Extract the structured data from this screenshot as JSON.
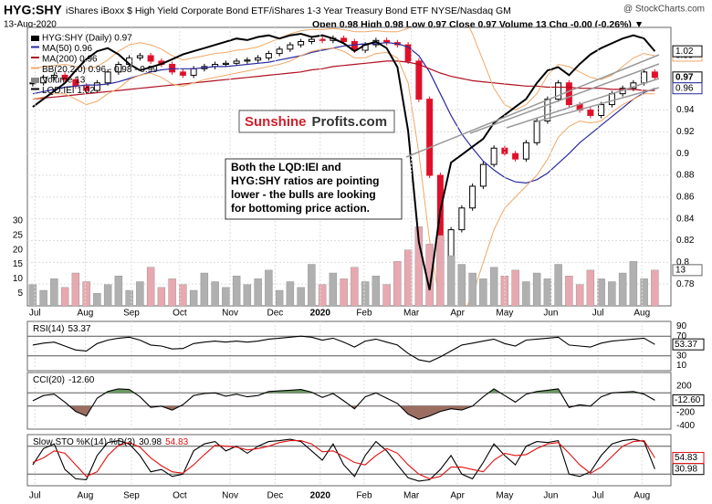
{
  "chart_data": [
    {
      "type": "stock",
      "title": "HYG:SHY",
      "subtitle": "iShares iBoxx $ High Yield Corporate Bond ETF/iShares 1-3 Year Treasury Bond ETF NYSE/Nasdaq GM",
      "source": "@ StockCharts.com",
      "date": "13-Aug-2020",
      "quote": "Open 0.98 High 0.98 Low 0.97 Close 0.97 Volume 13 Chg -0.00 (-0.26%) ▼",
      "brand": [
        "Sunshine",
        "Profits.com"
      ],
      "annotation": [
        "Both the LQD:IEI and",
        "HYG:SHY ratios are pointing",
        "lower - the bulls are looking",
        "for bottoming price action."
      ],
      "xlim": [
        -0.5,
        59.5
      ],
      "xticks": [
        {
          "value": 0.2,
          "label": "Jul"
        },
        {
          "value": 4.9,
          "label": "Aug"
        },
        {
          "value": 9.2,
          "label": "Sep"
        },
        {
          "value": 13.7,
          "label": "Oct"
        },
        {
          "value": 18.4,
          "label": "Nov"
        },
        {
          "value": 22.6,
          "label": "Dec"
        },
        {
          "value": 26.8,
          "label": "2020"
        },
        {
          "value": 30.9,
          "label": "Feb"
        },
        {
          "value": 35.3,
          "label": "Mar"
        },
        {
          "value": 39.6,
          "label": "Apr"
        },
        {
          "value": 44,
          "label": "May"
        },
        {
          "value": 48.3,
          "label": "Jun"
        },
        {
          "value": 52.7,
          "label": "Jul"
        },
        {
          "value": 56.8,
          "label": "Aug"
        }
      ],
      "ylim": [
        0.76,
        1.016
      ],
      "yticks": [
        0.78,
        0.8,
        0.82,
        0.84,
        0.86,
        0.88,
        0.9,
        0.92,
        0.94
      ],
      "y2lim": [
        0.86,
        1.035
      ],
      "series": [
        {
          "name": "HYG:SHY (Daily) 0.97",
          "style": "candle",
          "color": "#000000",
          "down_color": "#e0102a",
          "last_label": true,
          "values": [
            0.965,
            0.97,
            0.972,
            0.968,
            0.962,
            0.958,
            0.965,
            0.975,
            0.982,
            0.988,
            0.99,
            0.985,
            0.982,
            0.975,
            0.972,
            0.978,
            0.98,
            0.982,
            0.983,
            0.985,
            0.986,
            0.988,
            0.992,
            0.996,
            1.0,
            1.003,
            1.005,
            1.004,
            1.006,
            1.003,
            0.995,
            1.0,
            1.004,
            1.002,
            1.0,
            0.985,
            0.95,
            0.88,
            0.79,
            0.83,
            0.85,
            0.87,
            0.89,
            0.905,
            0.9,
            0.895,
            0.91,
            0.93,
            0.95,
            0.965,
            0.945,
            0.94,
            0.935,
            0.945,
            0.955,
            0.96,
            0.965,
            0.975,
            0.97
          ]
        },
        {
          "name": "MA(50) 0.96",
          "style": "line",
          "color": "#2a2aa0",
          "last_label": true,
          "values": [
            0.955,
            0.957,
            0.959,
            0.961,
            0.962,
            0.963,
            0.963,
            0.964,
            0.966,
            0.969,
            0.972,
            0.975,
            0.977,
            0.978,
            0.978,
            0.978,
            0.979,
            0.98,
            0.98,
            0.981,
            0.982,
            0.983,
            0.984,
            0.986,
            0.988,
            0.99,
            0.993,
            0.995,
            0.997,
            0.999,
            1.0,
            1.001,
            1.001,
            1.002,
            1.001,
            0.998,
            0.99,
            0.975,
            0.955,
            0.935,
            0.918,
            0.905,
            0.893,
            0.885,
            0.878,
            0.874,
            0.873,
            0.876,
            0.882,
            0.891,
            0.9,
            0.91,
            0.918,
            0.926,
            0.934,
            0.942,
            0.95,
            0.956,
            0.96
          ]
        },
        {
          "name": "MA(200) 0.96",
          "style": "line",
          "color": "#b01020",
          "values": [
            0.95,
            0.951,
            0.952,
            0.953,
            0.954,
            0.955,
            0.956,
            0.957,
            0.958,
            0.959,
            0.96,
            0.961,
            0.962,
            0.963,
            0.964,
            0.965,
            0.966,
            0.967,
            0.968,
            0.969,
            0.97,
            0.971,
            0.972,
            0.973,
            0.974,
            0.975,
            0.977,
            0.978,
            0.98,
            0.981,
            0.982,
            0.983,
            0.984,
            0.985,
            0.985,
            0.984,
            0.982,
            0.978,
            0.974,
            0.971,
            0.969,
            0.967,
            0.966,
            0.965,
            0.964,
            0.963,
            0.962,
            0.962,
            0.961,
            0.961,
            0.961,
            0.96,
            0.96,
            0.96,
            0.959,
            0.959,
            0.959,
            0.958,
            0.958
          ]
        },
        {
          "name": "BB(20,2.0) 0.96 - 0.98 - 0.99",
          "style": "band",
          "color": "#f0a868",
          "last_label": true,
          "upper": [
            0.978,
            0.98,
            0.981,
            0.982,
            0.98,
            0.978,
            0.98,
            0.986,
            0.994,
            1.0,
            1.002,
            1.0,
            0.996,
            0.99,
            0.986,
            0.988,
            0.99,
            0.992,
            0.993,
            0.995,
            0.996,
            0.998,
            1.002,
            1.006,
            1.01,
            1.013,
            1.014,
            1.014,
            1.015,
            1.014,
            1.012,
            1.012,
            1.013,
            1.012,
            1.012,
            1.015,
            1.03,
            1.04,
            1.045,
            1.04,
            1.03,
            1.01,
            0.985,
            0.96,
            0.945,
            0.94,
            0.945,
            0.955,
            0.972,
            0.982,
            0.98,
            0.975,
            0.97,
            0.968,
            0.972,
            0.98,
            0.988,
            0.992,
            0.99
          ],
          "lower": [
            0.95,
            0.952,
            0.955,
            0.955,
            0.95,
            0.945,
            0.948,
            0.955,
            0.96,
            0.968,
            0.972,
            0.974,
            0.97,
            0.964,
            0.962,
            0.965,
            0.968,
            0.97,
            0.972,
            0.974,
            0.976,
            0.978,
            0.98,
            0.982,
            0.985,
            0.99,
            0.994,
            0.996,
            0.997,
            0.994,
            0.988,
            0.988,
            0.992,
            0.993,
            0.988,
            0.965,
            0.9,
            0.82,
            0.76,
            0.74,
            0.75,
            0.77,
            0.8,
            0.83,
            0.85,
            0.86,
            0.87,
            0.88,
            0.895,
            0.915,
            0.925,
            0.93,
            0.928,
            0.93,
            0.938,
            0.945,
            0.95,
            0.955,
            0.955
          ]
        },
        {
          "name": "Volume 13",
          "style": "volume",
          "color": "#b0b0b0",
          "down_color": "#e8a8b0",
          "last_label": true,
          "ylim": [
            0,
            97
          ],
          "yticks": [
            5,
            10,
            15,
            20,
            25,
            30
          ],
          "values": [
            8,
            6,
            10,
            7,
            12,
            9,
            5,
            8,
            11,
            6,
            9,
            14,
            7,
            10,
            8,
            6,
            12,
            9,
            7,
            11,
            8,
            10,
            13,
            6,
            9,
            7,
            15,
            8,
            12,
            10,
            14,
            9,
            11,
            8,
            16,
            20,
            28,
            22,
            25,
            18,
            15,
            12,
            10,
            14,
            11,
            13,
            9,
            12,
            10,
            15,
            11,
            8,
            13,
            10,
            9,
            12,
            16,
            10,
            13
          ]
        },
        {
          "name": "LQD:IEI 1.02",
          "style": "line",
          "axis": "y2",
          "color": "#000000",
          "width": 2,
          "last_label": true,
          "values": [
            0.985,
            0.99,
            0.995,
            1.0,
            1.008,
            1.015,
            1.02,
            1.022,
            1.018,
            1.012,
            1.008,
            1.01,
            1.012,
            1.015,
            1.018,
            1.02,
            1.022,
            1.024,
            1.026,
            1.028,
            1.027,
            1.029,
            1.03,
            1.028,
            1.03,
            1.031,
            1.029,
            1.03,
            1.028,
            1.025,
            1.02,
            1.024,
            1.026,
            1.022,
            1.01,
            0.97,
            0.9,
            0.87,
            0.92,
            0.95,
            0.955,
            0.96,
            0.965,
            0.975,
            0.98,
            0.985,
            0.99,
            1.0,
            1.008,
            1.01,
            1.005,
            1.012,
            1.018,
            1.022,
            1.025,
            1.028,
            1.03,
            1.028,
            1.02
          ]
        }
      ]
    },
    {
      "type": "line",
      "title": "RSI(14)",
      "ylim": [
        0,
        100
      ],
      "yticks": [
        10,
        30,
        70,
        90
      ],
      "levels": [
        30,
        70
      ],
      "series": [
        {
          "color": "#000000",
          "values": [
            52,
            56,
            58,
            50,
            42,
            40,
            55,
            62,
            66,
            68,
            62,
            52,
            50,
            44,
            45,
            55,
            58,
            60,
            58,
            60,
            58,
            60,
            64,
            66,
            68,
            70,
            68,
            62,
            66,
            58,
            48,
            60,
            64,
            58,
            52,
            35,
            22,
            18,
            28,
            40,
            52,
            56,
            60,
            64,
            55,
            50,
            62,
            64,
            66,
            68,
            52,
            50,
            48,
            56,
            60,
            62,
            64,
            66,
            53.37
          ]
        }
      ]
    },
    {
      "type": "line",
      "title": "CCI(20)",
      "ylim": [
        -448,
        407
      ],
      "yticks": [
        200,
        -200,
        -400
      ],
      "levels": [
        100,
        -100
      ],
      "fill_above": "#6c9a62",
      "fill_below": "#9c6e62",
      "series": [
        {
          "color": "#000000",
          "values": [
            -20,
            60,
            80,
            -40,
            -180,
            -250,
            20,
            120,
            160,
            150,
            40,
            -120,
            -100,
            -160,
            -80,
            60,
            90,
            100,
            50,
            80,
            40,
            60,
            120,
            130,
            140,
            150,
            110,
            30,
            90,
            -20,
            -140,
            40,
            100,
            20,
            -60,
            -220,
            -300,
            -250,
            -180,
            -140,
            -160,
            -100,
            40,
            160,
            60,
            -40,
            80,
            120,
            140,
            160,
            -120,
            -80,
            -100,
            40,
            100,
            110,
            120,
            80,
            -12.6
          ],
          "value_labels": {
            "58": "-12.60"
          }
        }
      ]
    },
    {
      "type": "line",
      "title": "Slow STO %K(14) %D(3)",
      "ylim": [
        -5,
        105
      ],
      "levels": [
        20,
        80
      ],
      "series": [
        {
          "color": "#000000",
          "values": [
            40,
            75,
            85,
            30,
            10,
            8,
            60,
            88,
            92,
            85,
            60,
            25,
            30,
            15,
            20,
            70,
            85,
            90,
            70,
            80,
            65,
            80,
            90,
            92,
            95,
            90,
            70,
            50,
            85,
            40,
            15,
            60,
            90,
            70,
            40,
            12,
            5,
            8,
            30,
            60,
            20,
            10,
            45,
            85,
            60,
            40,
            80,
            90,
            88,
            92,
            20,
            15,
            25,
            60,
            85,
            92,
            95,
            90,
            30.98
          ]
        },
        {
          "color": "#e01010",
          "values": [
            45,
            55,
            70,
            65,
            40,
            15,
            25,
            60,
            82,
            88,
            78,
            55,
            38,
            25,
            22,
            40,
            62,
            82,
            80,
            78,
            72,
            75,
            80,
            88,
            92,
            92,
            85,
            68,
            70,
            58,
            45,
            40,
            60,
            75,
            65,
            40,
            20,
            10,
            15,
            35,
            35,
            30,
            25,
            50,
            65,
            60,
            62,
            75,
            85,
            88,
            65,
            40,
            22,
            35,
            58,
            80,
            90,
            92,
            54.83
          ]
        }
      ]
    }
  ]
}
